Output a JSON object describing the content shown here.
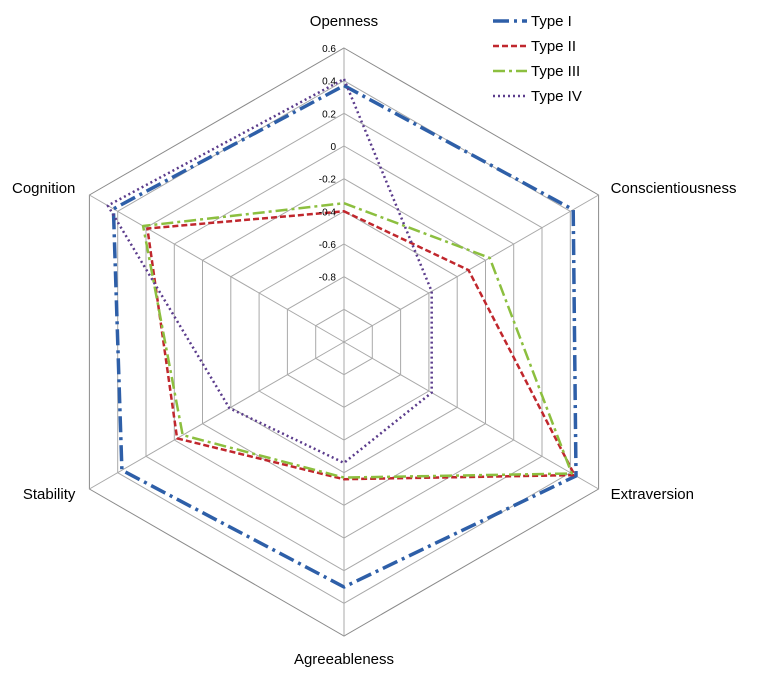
{
  "chart_data": {
    "type": "radar",
    "axes": [
      "Openness",
      "Conscientiousness",
      "Extraversion",
      "Agreeableness",
      "Stability",
      "Cognition"
    ],
    "rlim": [
      -1.2,
      0.6
    ],
    "ticks": [
      0.6,
      0.4,
      0.2,
      0,
      -0.2,
      -0.4,
      -0.6,
      -0.8
    ],
    "grid": true,
    "legend_position": "top-right",
    "series": [
      {
        "name": "Type I",
        "values": [
          0.37,
          0.42,
          0.44,
          0.3,
          0.37,
          0.43
        ],
        "color": "#2E5FA8",
        "dash": "16,5,3,5"
      },
      {
        "name": "Type II",
        "values": [
          -0.4,
          -0.32,
          0.43,
          -0.36,
          -0.02,
          0.19
        ],
        "color": "#C0272D",
        "dash": "6,3"
      },
      {
        "name": "Type III",
        "values": [
          -0.35,
          -0.17,
          0.41,
          -0.37,
          -0.06,
          0.22
        ],
        "color": "#8CBF3F",
        "dash": "12,4,3,4"
      },
      {
        "name": "Type IV",
        "values": [
          0.41,
          -0.58,
          -0.58,
          -0.46,
          -0.39,
          0.47
        ],
        "color": "#5B3C8C",
        "dash": "2,3"
      }
    ]
  }
}
